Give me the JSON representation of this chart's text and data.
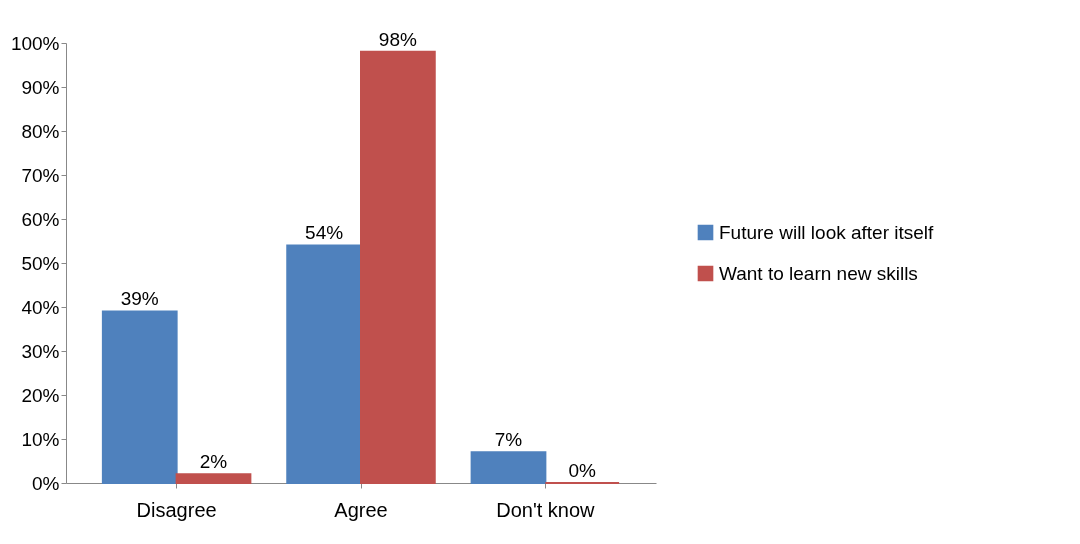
{
  "chart_data": {
    "type": "bar",
    "categories": [
      "Disagree",
      "Agree",
      "Don't know"
    ],
    "series": [
      {
        "name": "Future will look after itself",
        "color": "#4f81bd",
        "values": [
          39,
          54,
          7
        ],
        "value_labels": [
          "39%",
          "54%",
          "7%"
        ]
      },
      {
        "name": "Want to learn new skills",
        "color": "#c0504d",
        "values": [
          2,
          98,
          0
        ],
        "value_labels": [
          "2%",
          "98%",
          "0%"
        ]
      }
    ],
    "ylim": [
      0,
      100
    ],
    "yticks": [
      {
        "value": 0,
        "label": "0%"
      },
      {
        "value": 10,
        "label": "10%"
      },
      {
        "value": 20,
        "label": "20%"
      },
      {
        "value": 30,
        "label": "30%"
      },
      {
        "value": 40,
        "label": "40%"
      },
      {
        "value": 50,
        "label": "50%"
      },
      {
        "value": 60,
        "label": "60%"
      },
      {
        "value": 70,
        "label": "70%"
      },
      {
        "value": 80,
        "label": "80%"
      },
      {
        "value": 90,
        "label": "90%"
      },
      {
        "value": 100,
        "label": "100%"
      }
    ],
    "grid": false,
    "legend": "right"
  }
}
